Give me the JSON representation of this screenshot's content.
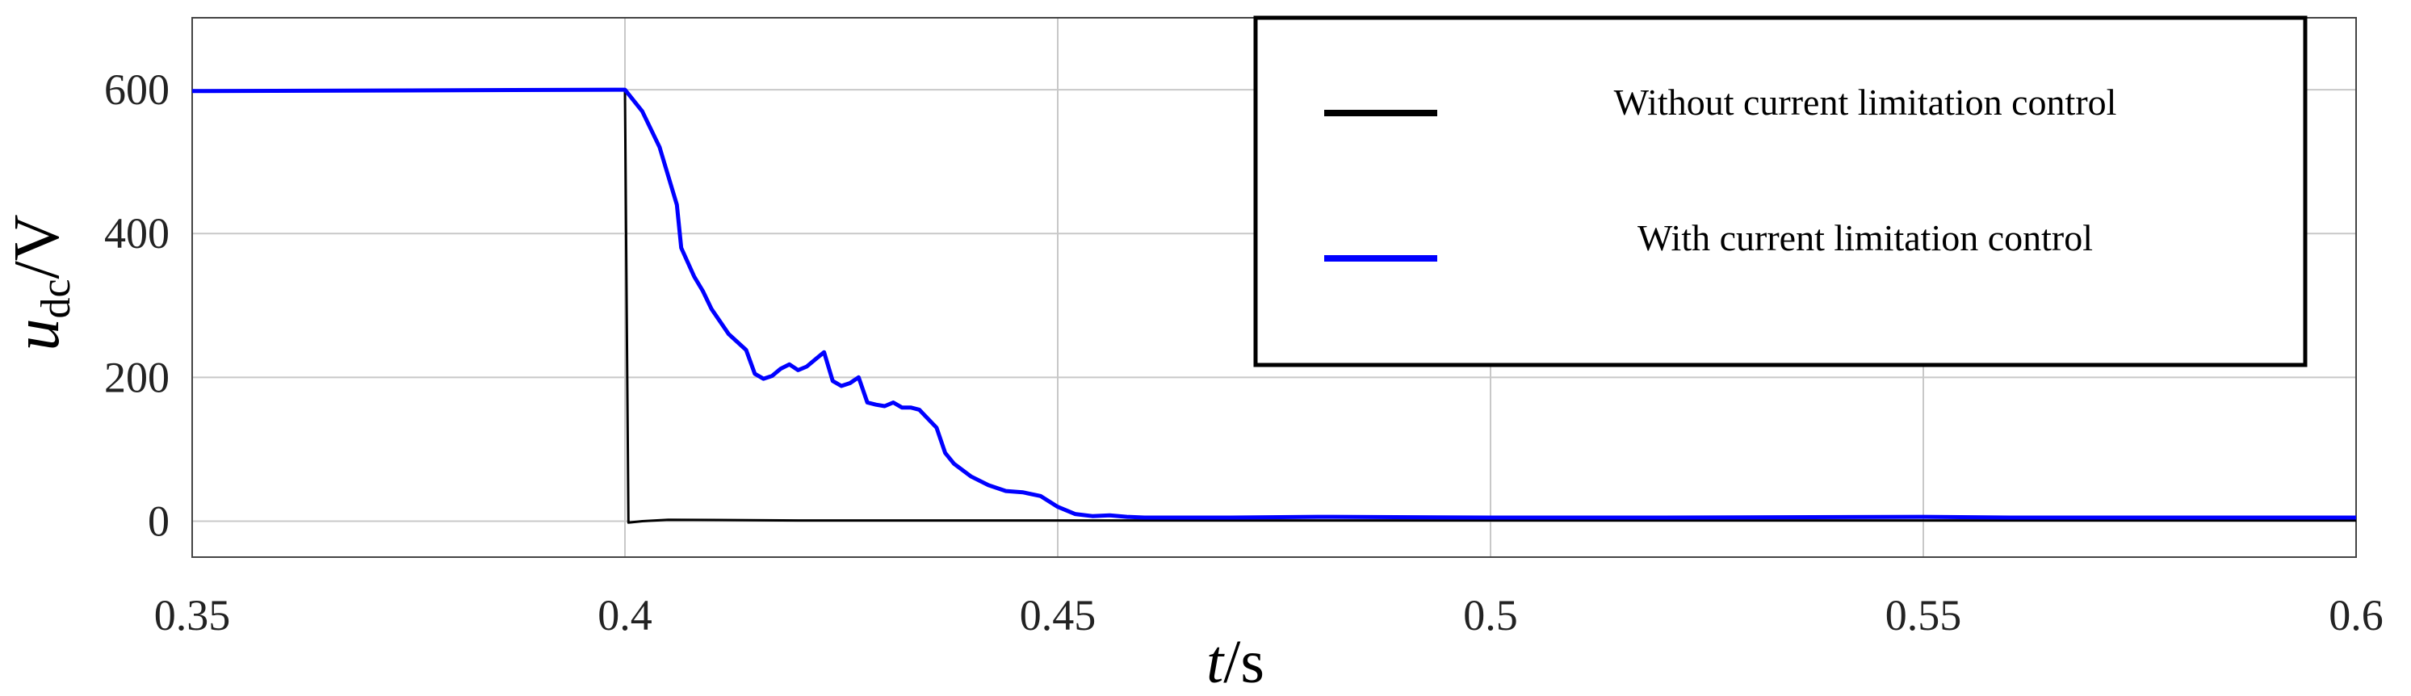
{
  "chart_data": {
    "type": "line",
    "xlabel": {
      "var": "t",
      "unit": "/s"
    },
    "ylabel": {
      "var": "u",
      "sub": "dc",
      "unit": "/V"
    },
    "xlim": [
      0.35,
      0.6
    ],
    "ylim": [
      -50,
      700
    ],
    "xticks": [
      0.35,
      0.4,
      0.45,
      0.5,
      0.55,
      0.6
    ],
    "xtick_labels": [
      "0.35",
      "0.4",
      "0.45",
      "0.5",
      "0.55",
      "0.6"
    ],
    "yticks": [
      0,
      200,
      400,
      600
    ],
    "ytick_labels": [
      "0",
      "200",
      "400",
      "600"
    ],
    "grid": true,
    "legend_position": "top-right",
    "series": [
      {
        "name": "Without current limitation control",
        "color": "#000000",
        "points": [
          [
            0.35,
            598
          ],
          [
            0.4,
            600
          ],
          [
            0.4002,
            300
          ],
          [
            0.4004,
            -2
          ],
          [
            0.402,
            0
          ],
          [
            0.405,
            2
          ],
          [
            0.42,
            1
          ],
          [
            0.45,
            1
          ],
          [
            0.5,
            1
          ],
          [
            0.6,
            1
          ]
        ]
      },
      {
        "name": "With current limitation control",
        "color": "#0000ff",
        "points": [
          [
            0.35,
            598
          ],
          [
            0.4,
            600
          ],
          [
            0.402,
            570
          ],
          [
            0.404,
            520
          ],
          [
            0.406,
            440
          ],
          [
            0.4065,
            380
          ],
          [
            0.408,
            340
          ],
          [
            0.409,
            320
          ],
          [
            0.41,
            295
          ],
          [
            0.412,
            260
          ],
          [
            0.414,
            238
          ],
          [
            0.415,
            205
          ],
          [
            0.416,
            198
          ],
          [
            0.417,
            202
          ],
          [
            0.418,
            212
          ],
          [
            0.419,
            218
          ],
          [
            0.42,
            210
          ],
          [
            0.421,
            215
          ],
          [
            0.422,
            225
          ],
          [
            0.423,
            235
          ],
          [
            0.424,
            195
          ],
          [
            0.425,
            188
          ],
          [
            0.426,
            192
          ],
          [
            0.427,
            200
          ],
          [
            0.428,
            165
          ],
          [
            0.429,
            162
          ],
          [
            0.43,
            160
          ],
          [
            0.431,
            165
          ],
          [
            0.432,
            158
          ],
          [
            0.433,
            158
          ],
          [
            0.434,
            155
          ],
          [
            0.436,
            130
          ],
          [
            0.437,
            95
          ],
          [
            0.438,
            80
          ],
          [
            0.44,
            62
          ],
          [
            0.442,
            50
          ],
          [
            0.444,
            42
          ],
          [
            0.446,
            40
          ],
          [
            0.448,
            35
          ],
          [
            0.45,
            20
          ],
          [
            0.452,
            10
          ],
          [
            0.454,
            7
          ],
          [
            0.456,
            8
          ],
          [
            0.458,
            6
          ],
          [
            0.46,
            5
          ],
          [
            0.47,
            5
          ],
          [
            0.48,
            6
          ],
          [
            0.5,
            5
          ],
          [
            0.52,
            5
          ],
          [
            0.55,
            6
          ],
          [
            0.56,
            5
          ],
          [
            0.6,
            5
          ]
        ]
      }
    ]
  }
}
